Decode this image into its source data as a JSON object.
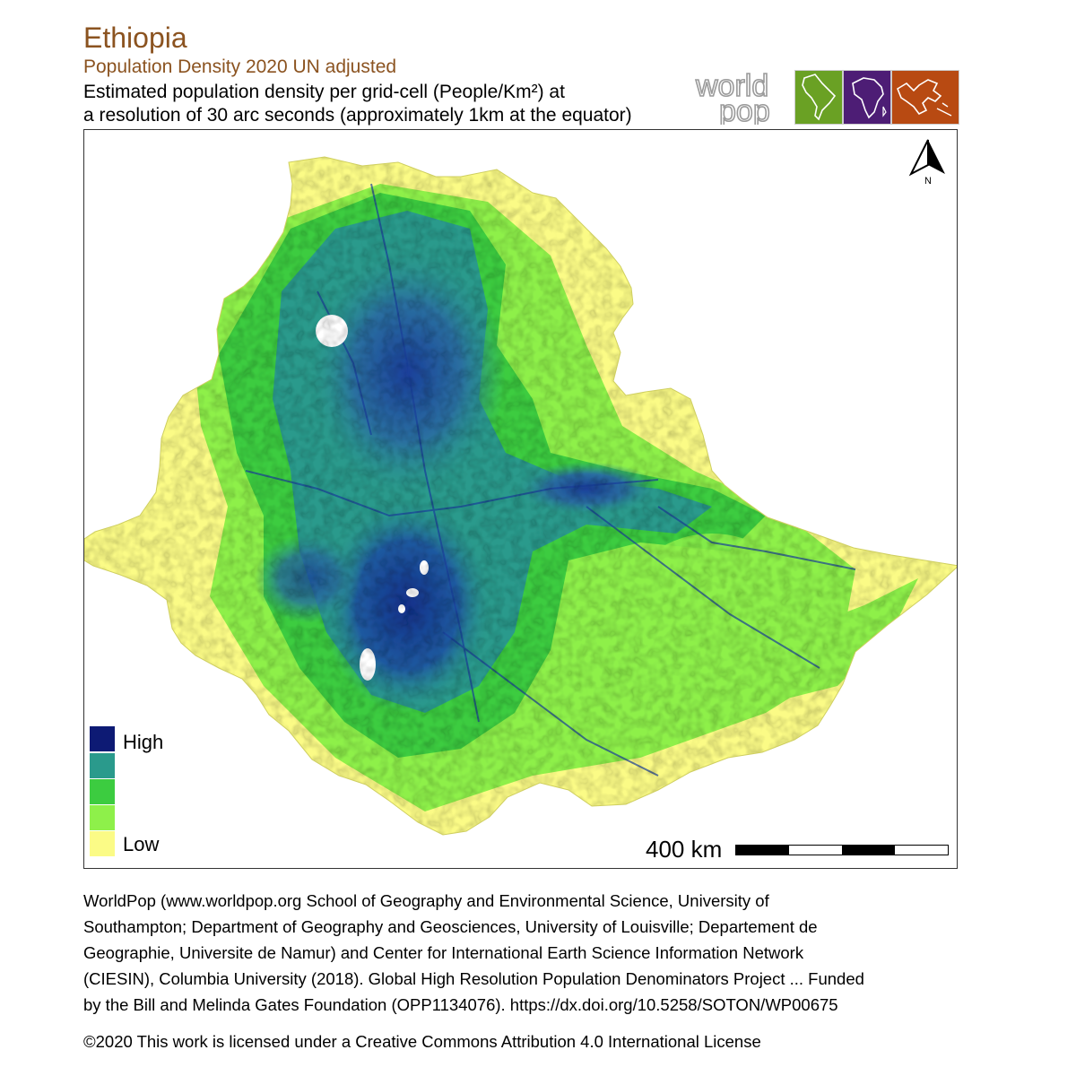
{
  "header": {
    "title": "Ethiopia",
    "subtitle": "Population Density 2020 UN adjusted",
    "description_line1": "Estimated population density per grid-cell (People/Km²) at",
    "description_line2": "a resolution of 30 arc seconds (approximately 1km at the equator)"
  },
  "logo": {
    "word_top": "world",
    "word_bottom": "pop",
    "tile_colors": [
      "#6aa124",
      "#4d1d75",
      "#b84a12"
    ]
  },
  "map": {
    "north_label": "N",
    "legend": {
      "items": [
        {
          "label": "High",
          "color": "#0d1a74"
        },
        {
          "label": "",
          "color": "#2a9a8c"
        },
        {
          "label": "",
          "color": "#3ccc40"
        },
        {
          "label": "",
          "color": "#8ef04a"
        },
        {
          "label": "Low",
          "color": "#fbfb86"
        }
      ]
    },
    "scale_label": "400 km",
    "colors": {
      "very_low": "#fbfb86",
      "low": "#8ef04a",
      "medium": "#3ccc40",
      "high": "#2a9a8c",
      "very_high": "#1a3f9a"
    }
  },
  "footer": {
    "citation_lines": [
      "WorldPop (www.worldpop.org School of Geography and Environmental Science, University of",
      "Southampton; Department of Geography and Geosciences, University of Louisville; Departement de",
      "Geographie, Universite de Namur) and Center for International Earth Science Information Network",
      "(CIESIN), Columbia University (2018). Global High Resolution Population Denominators Project ... Funded",
      "by the Bill and Melinda Gates Foundation (OPP1134076). https://dx.doi.org/10.5258/SOTON/WP00675"
    ],
    "license": "©2020 This work is licensed under a Creative Commons Attribution 4.0 International License"
  }
}
